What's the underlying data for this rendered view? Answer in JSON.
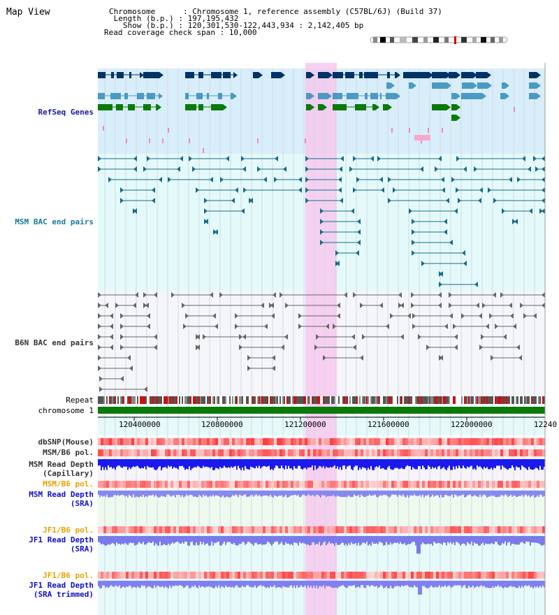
{
  "view_title": "Map View",
  "info": {
    "chromosome": "Chromosome      : Chromosome 1, reference assembly (C57BL/6J) (Build 37)",
    "length": " Length (b.p.) : 197,195,432",
    "show": "   Show (b.p.) : 120,301,530-122,443,934 : 2,142,405 bp",
    "coverage": "Read coverage check span : 10,000"
  },
  "tracks": {
    "refseq": "RefSeq Genes",
    "msm_bac": "MSM BAC end pairs",
    "b6n_bac": "B6N BAC end pairs",
    "repeat": "Repeat",
    "chromosome": "chromosome 1",
    "dbsnp": "dbSNP(Mouse)",
    "msm_b6_pol_1": "MSM/B6 pol.",
    "msm_read_depth_cap_1": "MSM Read Depth",
    "msm_read_depth_cap_2": "(Capillary)",
    "msm_b6_pol_2": "MSM/B6 pol.",
    "msm_read_depth_sra_1": "MSM Read Depth",
    "msm_read_depth_sra_2": "(SRA)",
    "jf1_b6_pol_1": "JF1/B6 pol.",
    "jf1_read_depth_sra_1": "JF1 Read Depth",
    "jf1_read_depth_sra_2": "(SRA)",
    "jf1_b6_pol_2": "JF1/B6 pol.",
    "jf1_read_depth_trim_1": "JF1 Read Depth",
    "jf1_read_depth_trim_2": "(SRA trimmed)"
  },
  "axis": {
    "ticks": [
      "120400000",
      "120800000",
      "121200000",
      "121600000",
      "122000000",
      "12240"
    ]
  },
  "colors": {
    "highlight": "#f7c8ee",
    "refseq_bg": "#d8eefa",
    "msm_bg": "#e4fafa",
    "b6n_bg": "#f4f6fa",
    "gene_dark": "#003366",
    "gene_mid": "#4a9ac2",
    "gene_green": "#0a7a0a",
    "chromosome_bar": "#0a7a0a"
  }
}
